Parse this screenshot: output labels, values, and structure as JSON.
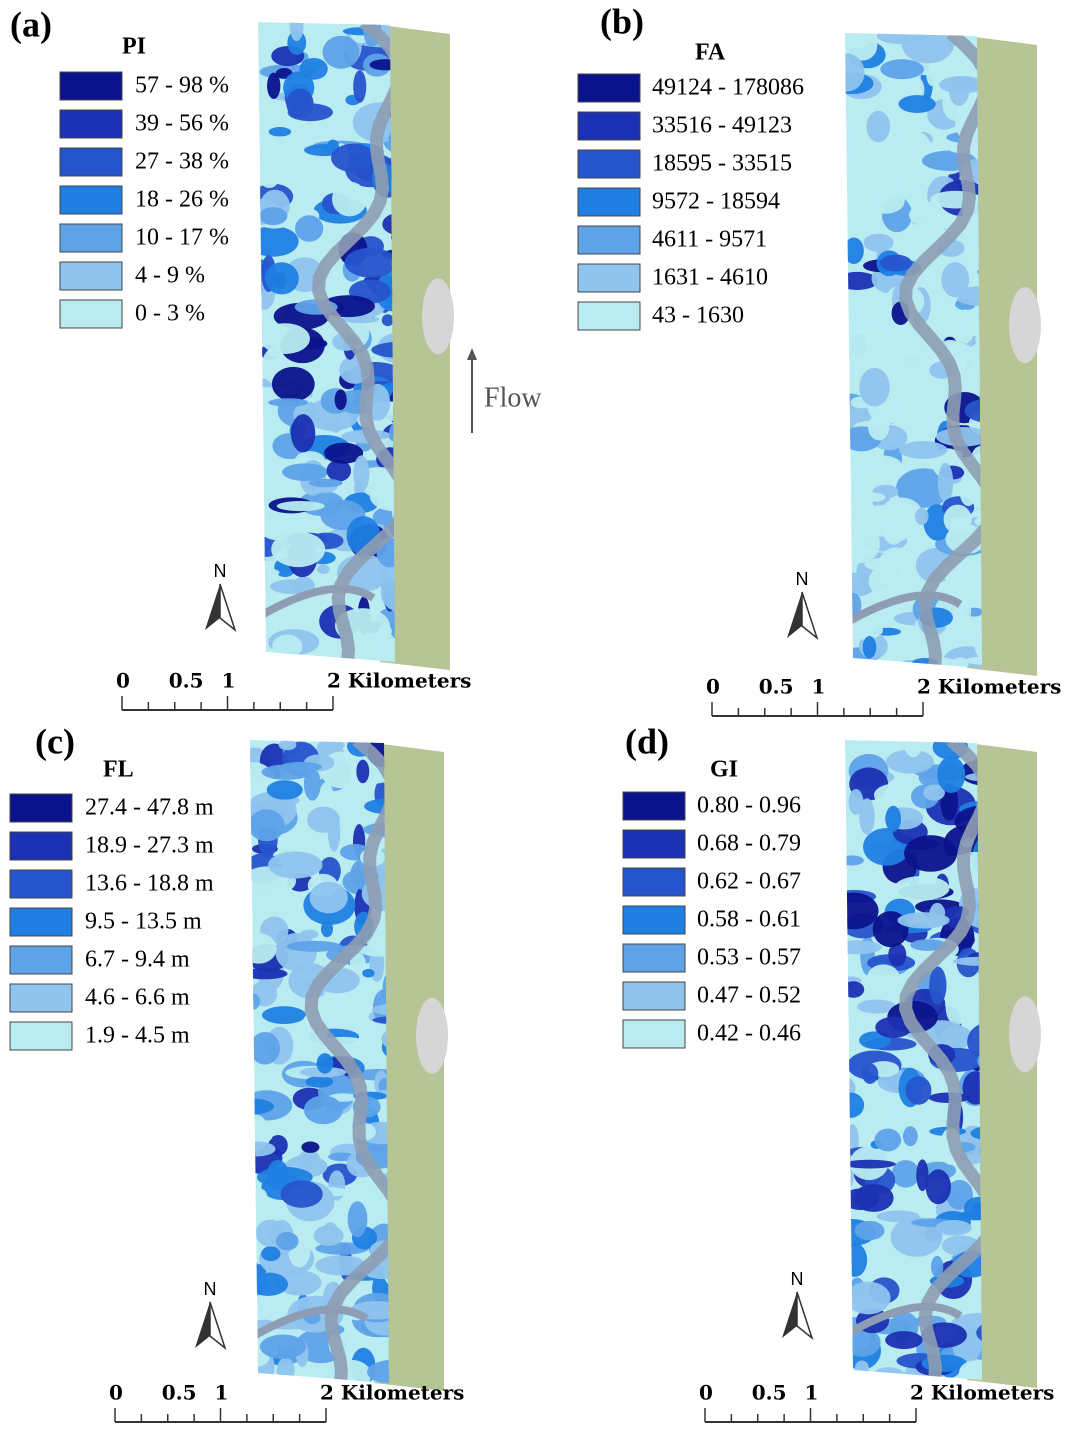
{
  "annotation": "Flow",
  "panels": [
    {
      "label": "(a)",
      "legend_title": "PI",
      "north": "N",
      "scale": [
        "0",
        "0.5",
        "1",
        "2 Kilometers"
      ],
      "legend": [
        {
          "label": "57 - 98 %",
          "color": "#0b138c"
        },
        {
          "label": "39 - 56 %",
          "color": "#1b30b2"
        },
        {
          "label": "27 - 38 %",
          "color": "#2654cc"
        },
        {
          "label": "18 - 26 %",
          "color": "#1f7fe2"
        },
        {
          "label": "10 - 17 %",
          "color": "#5ea2e8"
        },
        {
          "label": "4 - 9 %",
          "color": "#8fc4ee"
        },
        {
          "label": "0 - 3 %",
          "color": "#b9ecf0"
        }
      ]
    },
    {
      "label": "(b)",
      "legend_title": "FA",
      "north": "N",
      "scale": [
        "0",
        "0.5",
        "1",
        "2 Kilometers"
      ],
      "legend": [
        {
          "label": "49124 - 178086",
          "color": "#0b138c"
        },
        {
          "label": "33516 - 49123",
          "color": "#1b30b2"
        },
        {
          "label": "18595 - 33515",
          "color": "#2654cc"
        },
        {
          "label": "9572 - 18594",
          "color": "#1f7fe2"
        },
        {
          "label": "4611 - 9571",
          "color": "#5ea2e8"
        },
        {
          "label": "1631 - 4610",
          "color": "#8fc4ee"
        },
        {
          "label": "43 - 1630",
          "color": "#b9ecf0"
        }
      ]
    },
    {
      "label": "(c)",
      "legend_title": "FL",
      "north": "N",
      "scale": [
        "0",
        "0.5",
        "1",
        "2 Kilometers"
      ],
      "legend": [
        {
          "label": "27.4 - 47.8 m",
          "color": "#0b138c"
        },
        {
          "label": "18.9 - 27.3 m",
          "color": "#1b30b2"
        },
        {
          "label": "13.6 - 18.8 m",
          "color": "#2654cc"
        },
        {
          "label": "9.5 - 13.5 m",
          "color": "#1f7fe2"
        },
        {
          "label": "6.7 - 9.4 m",
          "color": "#5ea2e8"
        },
        {
          "label": "4.6 - 6.6 m",
          "color": "#8fc4ee"
        },
        {
          "label": "1.9 - 4.5 m",
          "color": "#b9ecf0"
        }
      ]
    },
    {
      "label": "(d)",
      "legend_title": "GI",
      "north": "N",
      "scale": [
        "0",
        "0.5",
        "1",
        "2 Kilometers"
      ],
      "legend": [
        {
          "label": "0.80 - 0.96",
          "color": "#0b138c"
        },
        {
          "label": "0.68 - 0.79",
          "color": "#1b30b2"
        },
        {
          "label": "0.62 - 0.67",
          "color": "#2654cc"
        },
        {
          "label": "0.58 - 0.61",
          "color": "#1f7fe2"
        },
        {
          "label": "0.53 - 0.57",
          "color": "#5ea2e8"
        },
        {
          "label": "0.47 - 0.52",
          "color": "#8fc4ee"
        },
        {
          "label": "0.42 - 0.46",
          "color": "#b9ecf0"
        }
      ]
    }
  ]
}
